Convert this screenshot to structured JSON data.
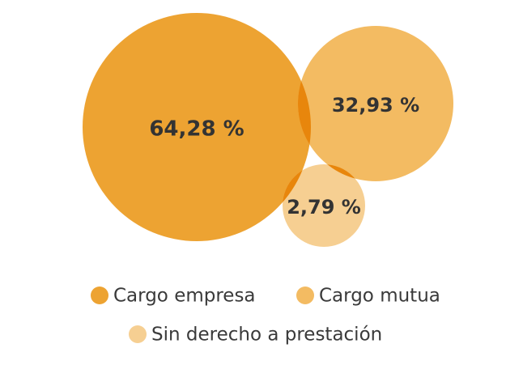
{
  "chart_data": {
    "type": "bubble",
    "title": "",
    "series": [
      {
        "name": "Cargo empresa",
        "value": 64.28,
        "label": "64,28 %",
        "color": "#eda332",
        "opacity": 1.0
      },
      {
        "name": "Cargo mutua",
        "value": 32.93,
        "label": "32,93 %",
        "color": "#f3bb62",
        "opacity": 1.0
      },
      {
        "name": "Sin derecho a prestación",
        "value": 2.79,
        "label": "2,79 %",
        "color": "#f6cf92",
        "opacity": 1.0
      }
    ],
    "overlap_color": "#e8860c",
    "legend": {
      "position": "bottom",
      "items": [
        "Cargo empresa",
        "Cargo mutua",
        "Sin derecho a prestación"
      ]
    }
  }
}
